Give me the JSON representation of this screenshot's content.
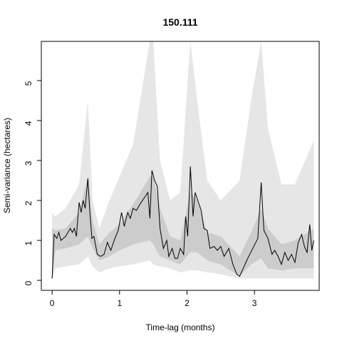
{
  "chart_data": {
    "type": "line",
    "title": "150.111",
    "x_label": "Time-lag (months)",
    "y_label": "Semi-variance (hectares)",
    "xlim": [
      -0.16,
      3.96
    ],
    "ylim": [
      -0.25,
      5.98
    ],
    "xticks": [
      0,
      1,
      2,
      3
    ],
    "yticks": [
      0,
      1,
      2,
      3,
      4,
      5
    ],
    "bands": [
      {
        "color": "#e6e6e6",
        "x": [
          0,
          0.05,
          0.2,
          0.4,
          0.53,
          0.6,
          0.7,
          0.85,
          1.0,
          1.2,
          1.45,
          1.5,
          1.6,
          1.75,
          1.9,
          2.05,
          2.15,
          2.3,
          2.5,
          2.78,
          2.95,
          3.1,
          3.2,
          3.4,
          3.6,
          3.88
        ],
        "upper": [
          1.7,
          1.6,
          1.8,
          2.4,
          4.5,
          2.0,
          1.3,
          2.0,
          2.6,
          3.4,
          6,
          6,
          3,
          2.0,
          2.2,
          6,
          4.5,
          2.5,
          2.0,
          2.5,
          4.5,
          6,
          3.8,
          2.4,
          2.4,
          3.5
        ],
        "lower": [
          0,
          0.3,
          0.35,
          0.4,
          0.6,
          0.35,
          0.2,
          0.3,
          0.35,
          0.4,
          0.5,
          0.4,
          0.35,
          0.3,
          0.2,
          0.25,
          0.25,
          0.2,
          0.15,
          0.05,
          0.05,
          0.05,
          0.05,
          0.05,
          0.05,
          0.05
        ]
      },
      {
        "color": "#cccccc",
        "x": [
          0,
          0.05,
          0.2,
          0.4,
          0.53,
          0.6,
          0.7,
          0.85,
          1.0,
          1.2,
          1.45,
          1.5,
          1.6,
          1.75,
          1.9,
          2.05,
          2.15,
          2.3,
          2.5,
          2.78,
          2.95,
          3.1,
          3.2,
          3.4,
          3.6,
          3.88
        ],
        "upper": [
          1.3,
          1.25,
          1.3,
          1.7,
          2.6,
          1.5,
          0.9,
          1.2,
          1.4,
          1.9,
          2.6,
          2.6,
          1.8,
          1.1,
          1.0,
          2.2,
          2.0,
          1.2,
          1.1,
          0.6,
          1.2,
          1.8,
          1.3,
          0.9,
          1.0,
          1.3
        ],
        "lower": [
          0,
          0.75,
          0.8,
          0.9,
          1.1,
          0.8,
          0.5,
          0.6,
          0.75,
          0.9,
          1.0,
          0.9,
          0.6,
          0.5,
          0.4,
          0.7,
          0.7,
          0.5,
          0.4,
          0.1,
          0.4,
          0.55,
          0.3,
          0.25,
          0.3,
          0.3
        ]
      }
    ],
    "series": [
      {
        "color": "#000000",
        "x": [
          0,
          0.03,
          0.07,
          0.1,
          0.13,
          0.2,
          0.27,
          0.3,
          0.33,
          0.36,
          0.4,
          0.43,
          0.46,
          0.49,
          0.53,
          0.56,
          0.59,
          0.62,
          0.67,
          0.72,
          0.77,
          0.82,
          0.87,
          0.93,
          0.98,
          1.03,
          1.07,
          1.12,
          1.16,
          1.2,
          1.25,
          1.3,
          1.38,
          1.42,
          1.45,
          1.48,
          1.52,
          1.56,
          1.6,
          1.65,
          1.7,
          1.73,
          1.78,
          1.82,
          1.86,
          1.9,
          1.95,
          1.98,
          2.01,
          2.05,
          2.09,
          2.12,
          2.17,
          2.21,
          2.25,
          2.3,
          2.34,
          2.4,
          2.45,
          2.5,
          2.55,
          2.62,
          2.68,
          2.74,
          2.78,
          2.9,
          3.05,
          3.1,
          3.14,
          3.2,
          3.26,
          3.3,
          3.35,
          3.4,
          3.45,
          3.5,
          3.55,
          3.6,
          3.65,
          3.7,
          3.74,
          3.78,
          3.82,
          3.85,
          3.88
        ],
        "values": [
          0.05,
          1.15,
          1.05,
          1.2,
          1.0,
          1.1,
          1.3,
          1.2,
          1.3,
          1.1,
          1.95,
          1.7,
          2.0,
          1.8,
          2.55,
          1.7,
          1.05,
          1.1,
          0.65,
          0.6,
          0.65,
          0.95,
          0.75,
          1.05,
          1.25,
          1.7,
          1.35,
          1.7,
          1.55,
          1.8,
          1.75,
          1.9,
          2.1,
          2.2,
          1.55,
          2.75,
          2.5,
          2.35,
          1.3,
          0.8,
          1.0,
          0.6,
          0.8,
          0.55,
          0.55,
          0.8,
          0.65,
          1.6,
          1.1,
          2.85,
          1.6,
          2.2,
          1.95,
          1.75,
          1.3,
          1.25,
          0.8,
          0.85,
          0.75,
          0.85,
          0.6,
          0.8,
          0.4,
          0.15,
          0.1,
          0.55,
          1.05,
          2.45,
          1.25,
          1.05,
          0.65,
          0.75,
          0.6,
          0.4,
          0.7,
          0.5,
          0.65,
          0.45,
          0.95,
          1.15,
          0.85,
          0.7,
          1.4,
          0.75,
          1.0
        ]
      }
    ]
  }
}
